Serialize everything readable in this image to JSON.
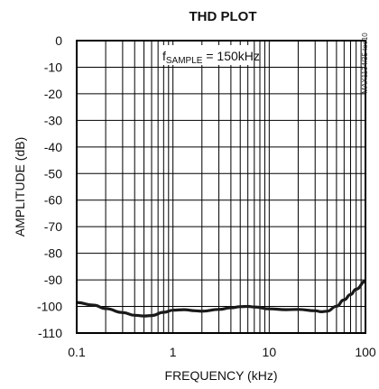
{
  "chart_data": {
    "type": "line",
    "title": "THD PLOT",
    "xlabel": "FREQUENCY (kHz)",
    "ylabel": "AMPLITUDE (dB)",
    "xscale": "log",
    "xlim": [
      0.1,
      100
    ],
    "ylim": [
      -110,
      0
    ],
    "grid": true,
    "xticks": [
      "0.1",
      "1",
      "10",
      "100"
    ],
    "yticks": [
      "0",
      "-10",
      "-20",
      "-30",
      "-40",
      "-50",
      "-60",
      "-70",
      "-80",
      "-90",
      "-100",
      "-110"
    ],
    "annotation": {
      "main": "f",
      "subscript": "SAMPLE",
      "value": " = 150kHz"
    },
    "side_label": "MAX1134/35 toc10",
    "series": [
      {
        "color": "#1a1a1a",
        "x": [
          0.1,
          0.15,
          0.2,
          0.3,
          0.4,
          0.5,
          0.6,
          0.8,
          1,
          1.3,
          1.7,
          2,
          3,
          4,
          5,
          6,
          7,
          10,
          15,
          20,
          30,
          35,
          40,
          50,
          60,
          70,
          80,
          100
        ],
        "y": [
          -98.5,
          -99.5,
          -100.8,
          -102.3,
          -103.3,
          -103.6,
          -103.4,
          -102.2,
          -101.4,
          -101.2,
          -101.6,
          -101.8,
          -101.1,
          -100.5,
          -100.1,
          -100.0,
          -100.2,
          -100.9,
          -101.2,
          -101.1,
          -101.6,
          -102.0,
          -101.8,
          -99.9,
          -97.5,
          -95.5,
          -93.5,
          -90.5
        ]
      }
    ]
  }
}
